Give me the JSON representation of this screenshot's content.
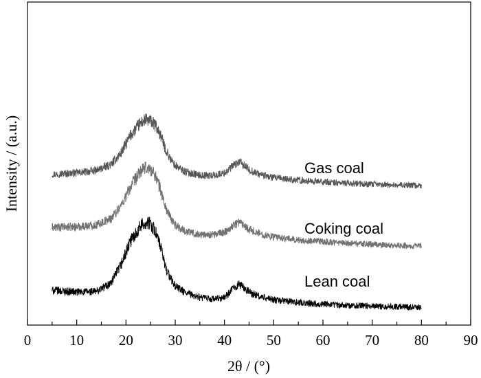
{
  "chart_data": {
    "type": "line",
    "xlabel": "2θ / (°)",
    "ylabel": "Intensity / (a.u.)",
    "xlim": [
      0,
      90
    ],
    "xticks": [
      0,
      10,
      20,
      30,
      40,
      50,
      60,
      70,
      80,
      90
    ],
    "y_ticks_shown": false,
    "grid": false,
    "legend": "inline labels beside curves",
    "series": [
      {
        "name": "Gas coal",
        "color": "#555555",
        "offset": 2.0,
        "x": [
          5,
          10,
          14,
          17,
          19,
          21,
          23,
          24,
          25,
          26,
          27,
          28,
          29,
          30,
          32,
          35,
          38,
          40,
          41,
          42,
          43,
          44,
          45,
          47,
          50,
          55,
          60,
          65,
          70,
          75,
          80
        ],
        "y": [
          0.2,
          0.22,
          0.26,
          0.36,
          0.55,
          0.85,
          1.05,
          1.1,
          1.08,
          1.0,
          0.85,
          0.62,
          0.45,
          0.34,
          0.24,
          0.18,
          0.18,
          0.22,
          0.28,
          0.36,
          0.4,
          0.34,
          0.27,
          0.2,
          0.14,
          0.1,
          0.07,
          0.05,
          0.03,
          0.02,
          0.01
        ]
      },
      {
        "name": "Coking coal",
        "color": "#707070",
        "offset": 1.0,
        "x": [
          5,
          10,
          14,
          17,
          19,
          21,
          23,
          24,
          25,
          26,
          27,
          28,
          29,
          30,
          32,
          35,
          38,
          40,
          41,
          42,
          43,
          44,
          45,
          47,
          50,
          55,
          60,
          65,
          70,
          75,
          80
        ],
        "y": [
          0.32,
          0.33,
          0.36,
          0.47,
          0.68,
          1.0,
          1.25,
          1.3,
          1.28,
          1.18,
          0.95,
          0.66,
          0.48,
          0.36,
          0.26,
          0.2,
          0.2,
          0.24,
          0.3,
          0.37,
          0.41,
          0.36,
          0.29,
          0.22,
          0.16,
          0.11,
          0.08,
          0.06,
          0.04,
          0.02,
          0.01
        ]
      },
      {
        "name": "Lean coal",
        "color": "#000000",
        "offset": 0.0,
        "x": [
          5,
          10,
          14,
          17,
          19,
          21,
          23,
          24,
          25,
          26,
          27,
          28,
          29,
          30,
          32,
          35,
          38,
          40,
          41,
          42,
          43,
          44,
          45,
          47,
          50,
          55,
          60,
          65,
          70,
          75,
          80
        ],
        "y": [
          0.28,
          0.25,
          0.26,
          0.4,
          0.7,
          1.1,
          1.35,
          1.4,
          1.38,
          1.25,
          1.0,
          0.68,
          0.48,
          0.35,
          0.24,
          0.16,
          0.13,
          0.16,
          0.24,
          0.33,
          0.38,
          0.32,
          0.25,
          0.18,
          0.12,
          0.08,
          0.05,
          0.03,
          0.02,
          0.01,
          0.0
        ]
      }
    ]
  }
}
